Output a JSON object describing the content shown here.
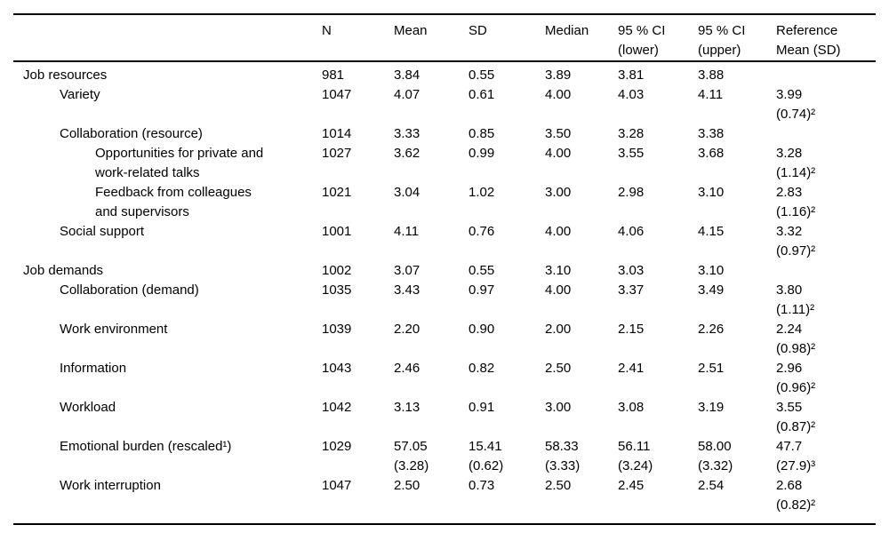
{
  "table": {
    "headers": {
      "label": "",
      "n": "N",
      "mean": "Mean",
      "sd": "SD",
      "median": "Median",
      "ci_lower": "95 % CI\n(lower)",
      "ci_upper": "95 % CI\n(upper)",
      "reference": "Reference\nMean (SD)"
    },
    "rows": [
      {
        "label": "Job resources",
        "indent": 0,
        "n": "981",
        "mean": "3.84",
        "sd": "0.55",
        "median": "3.89",
        "ci_lower": "3.81",
        "ci_upper": "3.88",
        "reference": ""
      },
      {
        "label": "Variety",
        "indent": 1,
        "n": "1047",
        "mean": "4.07",
        "sd": "0.61",
        "median": "4.00",
        "ci_lower": "4.03",
        "ci_upper": "4.11",
        "reference": "3.99\n(0.74)²"
      },
      {
        "label": "Collaboration (resource)",
        "indent": 1,
        "n": "1014",
        "mean": "3.33",
        "sd": "0.85",
        "median": "3.50",
        "ci_lower": "3.28",
        "ci_upper": "3.38",
        "reference": ""
      },
      {
        "label": "Opportunities for private and\nwork-related talks",
        "indent": 2,
        "n": "1027",
        "mean": "3.62",
        "sd": "0.99",
        "median": "4.00",
        "ci_lower": "3.55",
        "ci_upper": "3.68",
        "reference": "3.28\n(1.14)²"
      },
      {
        "label": "Feedback from colleagues\nand supervisors",
        "indent": 2,
        "n": "1021",
        "mean": "3.04",
        "sd": "1.02",
        "median": "3.00",
        "ci_lower": "2.98",
        "ci_upper": "3.10",
        "reference": "2.83\n(1.16)²"
      },
      {
        "label": "Social support",
        "indent": 1,
        "n": "1001",
        "mean": "4.11",
        "sd": "0.76",
        "median": "4.00",
        "ci_lower": "4.06",
        "ci_upper": "4.15",
        "reference": "3.32\n(0.97)²"
      },
      {
        "label": "Job demands",
        "indent": 0,
        "n": "1002",
        "mean": "3.07",
        "sd": "0.55",
        "median": "3.10",
        "ci_lower": "3.03",
        "ci_upper": "3.10",
        "reference": ""
      },
      {
        "label": "Collaboration (demand)",
        "indent": 1,
        "n": "1035",
        "mean": "3.43",
        "sd": "0.97",
        "median": "4.00",
        "ci_lower": "3.37",
        "ci_upper": "3.49",
        "reference": "3.80\n(1.11)²"
      },
      {
        "label": "Work environment",
        "indent": 1,
        "n": "1039",
        "mean": "2.20",
        "sd": "0.90",
        "median": "2.00",
        "ci_lower": "2.15",
        "ci_upper": "2.26",
        "reference": "2.24\n(0.98)²"
      },
      {
        "label": "Information",
        "indent": 1,
        "n": "1043",
        "mean": "2.46",
        "sd": "0.82",
        "median": "2.50",
        "ci_lower": "2.41",
        "ci_upper": "2.51",
        "reference": "2.96\n(0.96)²"
      },
      {
        "label": "Workload",
        "indent": 1,
        "n": "1042",
        "mean": "3.13",
        "sd": "0.91",
        "median": "3.00",
        "ci_lower": "3.08",
        "ci_upper": "3.19",
        "reference": "3.55\n(0.87)²"
      },
      {
        "label": "Emotional burden (rescaled¹)",
        "indent": 1,
        "n": "1029",
        "mean": "57.05\n(3.28)",
        "sd": "15.41\n(0.62)",
        "median": "58.33\n(3.33)",
        "ci_lower": "56.11\n(3.24)",
        "ci_upper": "58.00\n(3.32)",
        "reference": "47.7\n(27.9)³"
      },
      {
        "label": "Work interruption",
        "indent": 1,
        "n": "1047",
        "mean": "2.50",
        "sd": "0.73",
        "median": "2.50",
        "ci_lower": "2.45",
        "ci_upper": "2.54",
        "reference": "2.68\n(0.82)²"
      }
    ]
  }
}
